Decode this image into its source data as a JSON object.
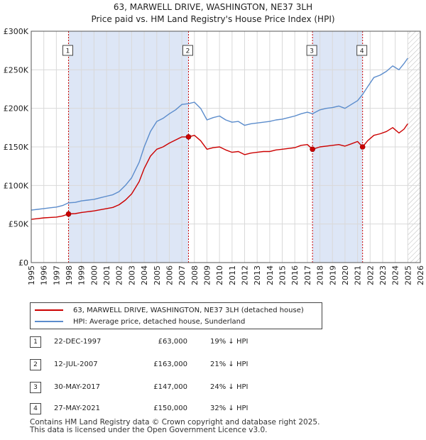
{
  "title_line1": "63, MARWELL DRIVE, WASHINGTON, NE37 3LH",
  "title_line2": "Price paid vs. HM Land Registry's House Price Index (HPI)",
  "colors": {
    "property": "#cc0000",
    "hpi": "#5b8ccc",
    "band": "#dde6f6",
    "grid": "#d9d9d9"
  },
  "chart_data": {
    "type": "line",
    "title": "Price paid vs. HM Land Registry's House Price Index (HPI)",
    "xlim": [
      1995,
      2026
    ],
    "ylim": [
      0,
      300000
    ],
    "y_ticks": [
      0,
      50000,
      100000,
      150000,
      200000,
      250000,
      300000
    ],
    "y_tick_labels": [
      "£0",
      "£50K",
      "£100K",
      "£150K",
      "£200K",
      "£250K",
      "£300K"
    ],
    "x_ticks": [
      1995,
      1996,
      1997,
      1998,
      1999,
      2000,
      2001,
      2002,
      2003,
      2004,
      2005,
      2006,
      2007,
      2008,
      2009,
      2010,
      2011,
      2012,
      2013,
      2014,
      2015,
      2016,
      2017,
      2018,
      2019,
      2020,
      2021,
      2022,
      2023,
      2024,
      2025,
      2026
    ],
    "x_tick_labels": [
      "1995",
      "1996",
      "1997",
      "1998",
      "1999",
      "2000",
      "2001",
      "2002",
      "2003",
      "2004",
      "2005",
      "2006",
      "2007",
      "2008",
      "2009",
      "2010",
      "2011",
      "2012",
      "2013",
      "2014",
      "2015",
      "2016",
      "2017",
      "2018",
      "2019",
      "2020",
      "2021",
      "2022",
      "2023",
      "2024",
      "2025",
      "2026"
    ],
    "shaded_periods": [
      [
        1997.97,
        2007.53
      ],
      [
        2017.41,
        2021.4
      ]
    ],
    "hatched_from": 2025.0,
    "series": [
      {
        "name": "HPI: Average price, detached house, Sunderland",
        "x": [
          1995.0,
          1995.5,
          1996.0,
          1996.5,
          1997.0,
          1997.5,
          1997.97,
          1998.5,
          1999.0,
          1999.5,
          2000.0,
          2000.5,
          2001.0,
          2001.5,
          2002.0,
          2002.5,
          2003.0,
          2003.3,
          2003.6,
          2004.0,
          2004.5,
          2005.0,
          2005.5,
          2006.0,
          2006.5,
          2007.0,
          2007.53,
          2008.0,
          2008.5,
          2009.0,
          2009.5,
          2010.0,
          2010.5,
          2011.0,
          2011.5,
          2012.0,
          2012.5,
          2013.0,
          2013.5,
          2014.0,
          2014.5,
          2015.0,
          2015.5,
          2016.0,
          2016.5,
          2017.0,
          2017.41,
          2018.0,
          2018.5,
          2019.0,
          2019.5,
          2020.0,
          2020.5,
          2021.0,
          2021.4,
          2021.8,
          2022.3,
          2022.8,
          2023.3,
          2023.8,
          2024.3,
          2024.7,
          2025.0
        ],
        "values": [
          68000,
          69000,
          70000,
          71000,
          72000,
          74000,
          77500,
          78000,
          80000,
          81000,
          82000,
          84000,
          86000,
          88000,
          92000,
          100000,
          110000,
          120000,
          130000,
          150000,
          170000,
          183000,
          187000,
          193000,
          198000,
          205000,
          206000,
          208000,
          200000,
          185000,
          188000,
          190000,
          185000,
          182000,
          183000,
          178000,
          180000,
          181000,
          182000,
          183000,
          185000,
          186000,
          188000,
          190000,
          193000,
          195000,
          193000,
          198000,
          200000,
          201000,
          203000,
          200000,
          205000,
          210000,
          218000,
          228000,
          240000,
          243000,
          248000,
          255000,
          250000,
          258000,
          265000
        ]
      },
      {
        "name": "63, MARWELL DRIVE, WASHINGTON, NE37 3LH (detached house)",
        "x": [
          1995.0,
          1995.5,
          1996.0,
          1996.5,
          1997.0,
          1997.5,
          1997.97,
          1998.5,
          1999.0,
          1999.5,
          2000.0,
          2000.5,
          2001.0,
          2001.5,
          2002.0,
          2002.5,
          2003.0,
          2003.3,
          2003.6,
          2004.0,
          2004.5,
          2005.0,
          2005.5,
          2006.0,
          2006.5,
          2007.0,
          2007.53,
          2008.0,
          2008.5,
          2009.0,
          2009.5,
          2010.0,
          2010.5,
          2011.0,
          2011.5,
          2012.0,
          2012.5,
          2013.0,
          2013.5,
          2014.0,
          2014.5,
          2015.0,
          2015.5,
          2016.0,
          2016.5,
          2017.0,
          2017.41,
          2018.0,
          2018.5,
          2019.0,
          2019.5,
          2020.0,
          2020.5,
          2021.0,
          2021.4,
          2021.8,
          2022.3,
          2022.8,
          2023.3,
          2023.8,
          2024.3,
          2024.7,
          2025.0
        ],
        "values": [
          56000,
          57000,
          58000,
          58500,
          59000,
          60500,
          63000,
          63500,
          65000,
          66000,
          67000,
          68500,
          70000,
          71500,
          75000,
          81000,
          89000,
          97000,
          105000,
          122000,
          138000,
          147000,
          150000,
          155000,
          159000,
          163000,
          163000,
          165000,
          158000,
          147000,
          149000,
          150000,
          146000,
          143000,
          144000,
          140000,
          142000,
          143000,
          144000,
          144000,
          146000,
          147000,
          148000,
          149000,
          152000,
          153000,
          147000,
          150000,
          151000,
          152000,
          153000,
          151000,
          154000,
          157000,
          150000,
          158000,
          165000,
          167000,
          170000,
          175000,
          168000,
          173000,
          180000
        ]
      }
    ],
    "markers": [
      {
        "label": "1",
        "x": 1997.97,
        "y": 63000
      },
      {
        "label": "2",
        "x": 2007.53,
        "y": 163000
      },
      {
        "label": "3",
        "x": 2017.41,
        "y": 147000
      },
      {
        "label": "4",
        "x": 2021.4,
        "y": 150000
      }
    ]
  },
  "legend": [
    {
      "label": "63, MARWELL DRIVE, WASHINGTON, NE37 3LH (detached house)",
      "color": "#cc0000"
    },
    {
      "label": "HPI: Average price, detached house, Sunderland",
      "color": "#5b8ccc"
    }
  ],
  "sales": [
    {
      "num": "1",
      "date": "22-DEC-1997",
      "price": "£63,000",
      "hpi": "19% ↓ HPI"
    },
    {
      "num": "2",
      "date": "12-JUL-2007",
      "price": "£163,000",
      "hpi": "21% ↓ HPI"
    },
    {
      "num": "3",
      "date": "30-MAY-2017",
      "price": "£147,000",
      "hpi": "24% ↓ HPI"
    },
    {
      "num": "4",
      "date": "27-MAY-2021",
      "price": "£150,000",
      "hpi": "32% ↓ HPI"
    }
  ],
  "footer_line1": "Contains HM Land Registry data © Crown copyright and database right 2025.",
  "footer_line2": "This data is licensed under the Open Government Licence v3.0."
}
